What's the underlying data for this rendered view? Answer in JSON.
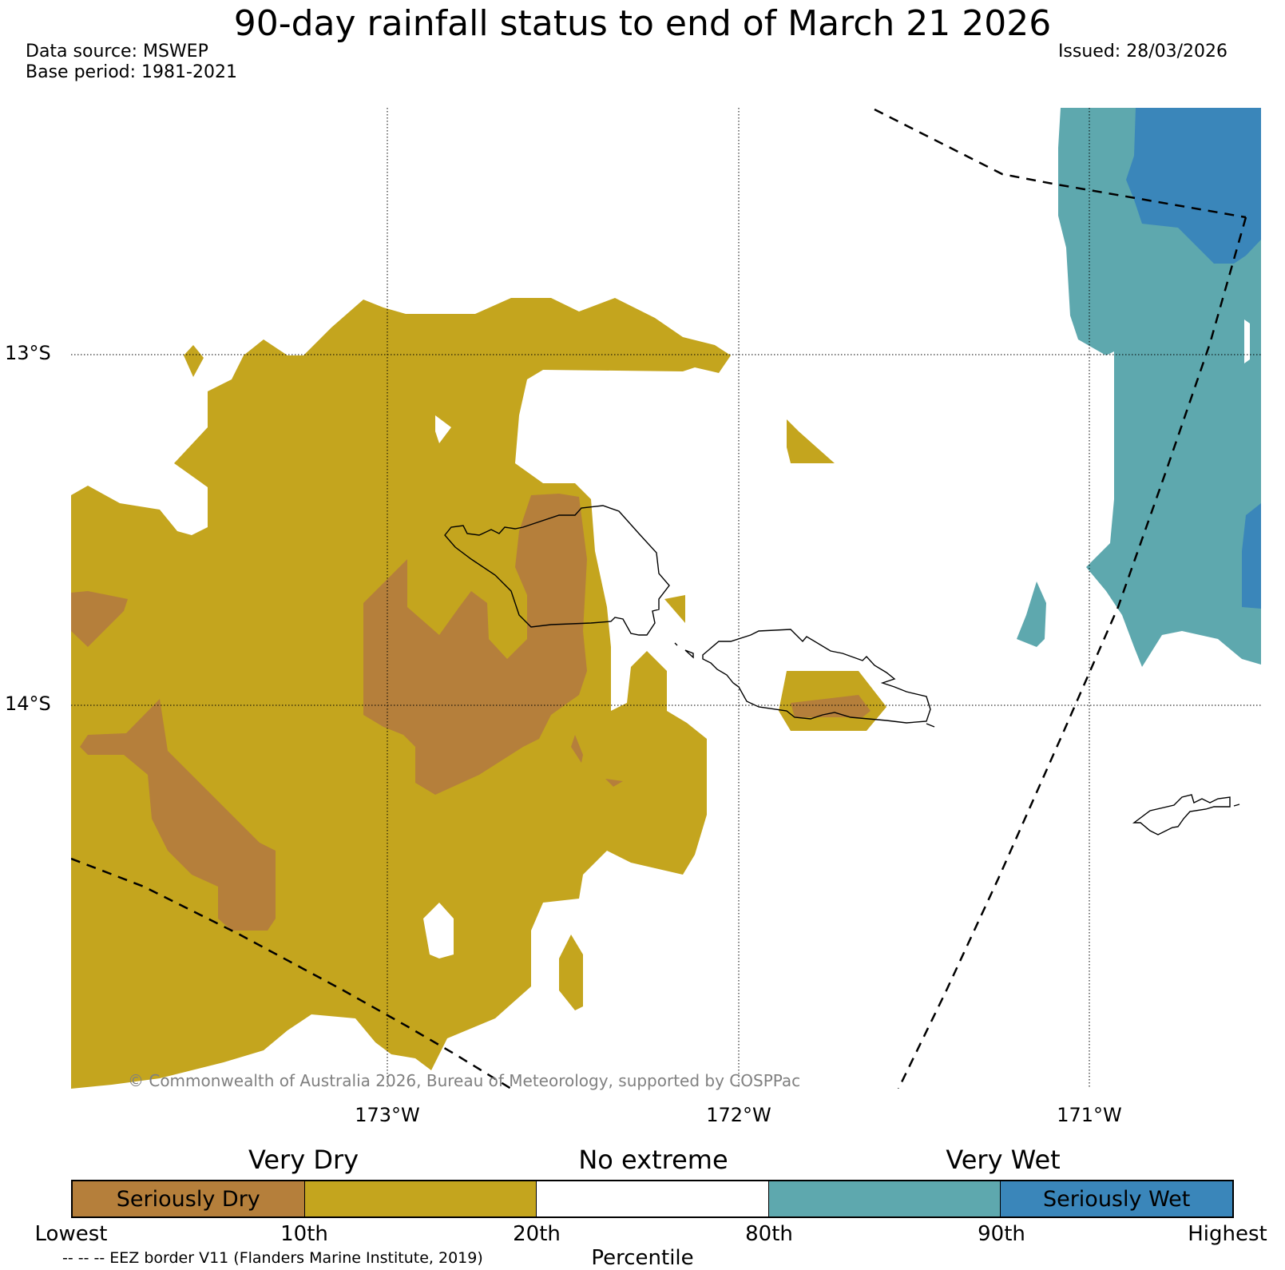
{
  "header": {
    "title": "90-day rainfall status to end of March 21 2026",
    "data_source": "Data source: MSWEP",
    "base_period": "Base period: 1981-2021",
    "issued": "Issued: 28/03/2026"
  },
  "map": {
    "lat_labels": [
      "13°S",
      "14°S"
    ],
    "lon_labels": [
      "173°W",
      "172°W",
      "171°W"
    ],
    "copyright": "© Commonwealth of Australia 2026, Bureau of Meteorology, supported by COSPPac",
    "colors": {
      "seriously_dry": "#b57f3b",
      "very_dry": "#c4a51e",
      "no_extreme": "#ffffff",
      "very_wet": "#5ea8ae",
      "seriously_wet": "#3a86ba"
    }
  },
  "legend": {
    "categories": [
      "Very Dry",
      "No extreme",
      "Very Wet"
    ],
    "segments": [
      {
        "label": "Seriously Dry",
        "color": "#b57f3b"
      },
      {
        "label": "",
        "color": "#c4a51e"
      },
      {
        "label": "",
        "color": "#ffffff"
      },
      {
        "label": "",
        "color": "#5ea8ae"
      },
      {
        "label": "Seriously Wet",
        "color": "#3a86ba"
      }
    ],
    "ticks": [
      "Lowest",
      "10th",
      "20th",
      "80th",
      "90th",
      "Highest"
    ],
    "axis_label": "Percentile",
    "eez_note": "-- -- -- EEZ border V11 (Flanders Marine Institute, 2019)"
  }
}
